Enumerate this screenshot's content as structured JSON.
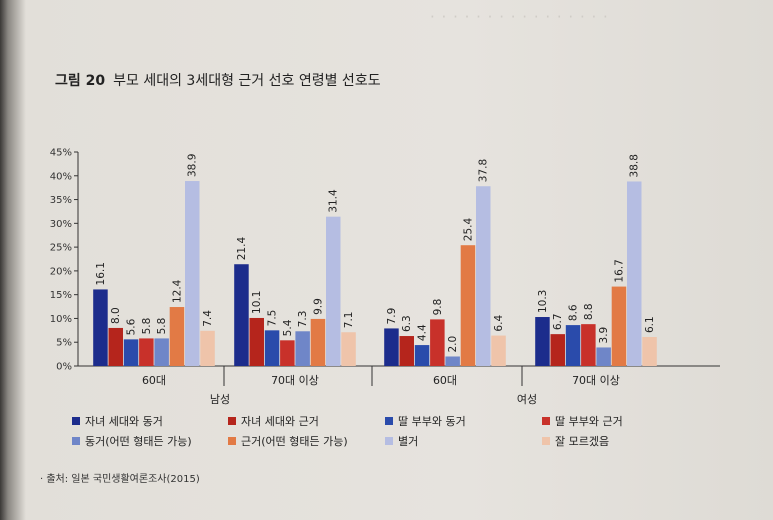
{
  "figure_label": "그림 20",
  "figure_title": "부모 세대의 3세대형 근거 선호 연령별 선호도",
  "source": "· 출처: 일본 국민생활여론조사(2015)",
  "chart_data": {
    "type": "bar",
    "title": "부모 세대의 3세대형 근거 선호 연령별 선호도",
    "ylim": [
      0,
      45
    ],
    "yticks": [
      "0%",
      "5%",
      "10%",
      "15%",
      "20%",
      "25%",
      "30%",
      "35%",
      "40%",
      "45%"
    ],
    "yticks_values": [
      0,
      5,
      10,
      15,
      20,
      25,
      30,
      35,
      40,
      45
    ],
    "groups": [
      {
        "gender": "남성",
        "categories": [
          "60대",
          "70대 이상"
        ]
      },
      {
        "gender": "여성",
        "categories": [
          "60대",
          "70대 이상"
        ]
      }
    ],
    "categories": [
      "60대",
      "70대 이상",
      "60대",
      "70대 이상"
    ],
    "series": [
      {
        "name": "자녀 세대와 동거",
        "color": "#1c2c8c",
        "values": [
          16.1,
          21.4,
          7.9,
          10.3
        ]
      },
      {
        "name": "자녀 세대와 근거",
        "color": "#b5251c",
        "values": [
          8.0,
          10.1,
          6.3,
          6.7
        ]
      },
      {
        "name": "딸 부부와 동거",
        "color": "#2a4bab",
        "values": [
          5.6,
          7.5,
          4.4,
          8.6
        ]
      },
      {
        "name": "딸 부부와 근거",
        "color": "#c8312a",
        "values": [
          5.8,
          5.4,
          9.8,
          8.8
        ]
      },
      {
        "name": "동거(어떤 형태든 가능)",
        "color": "#6f86c8",
        "values": [
          5.8,
          7.3,
          2.0,
          3.9
        ]
      },
      {
        "name": "근거(어떤 형태든 가능)",
        "color": "#e27a45",
        "values": [
          12.4,
          9.9,
          25.4,
          16.7
        ]
      },
      {
        "name": "별거",
        "color": "#b5bde2",
        "values": [
          38.9,
          31.4,
          37.8,
          38.8
        ]
      },
      {
        "name": "잘 모르겠음",
        "color": "#efc4aa",
        "values": [
          7.4,
          7.1,
          6.4,
          6.1
        ]
      }
    ],
    "legend_placement": "bottom",
    "grid": false
  }
}
